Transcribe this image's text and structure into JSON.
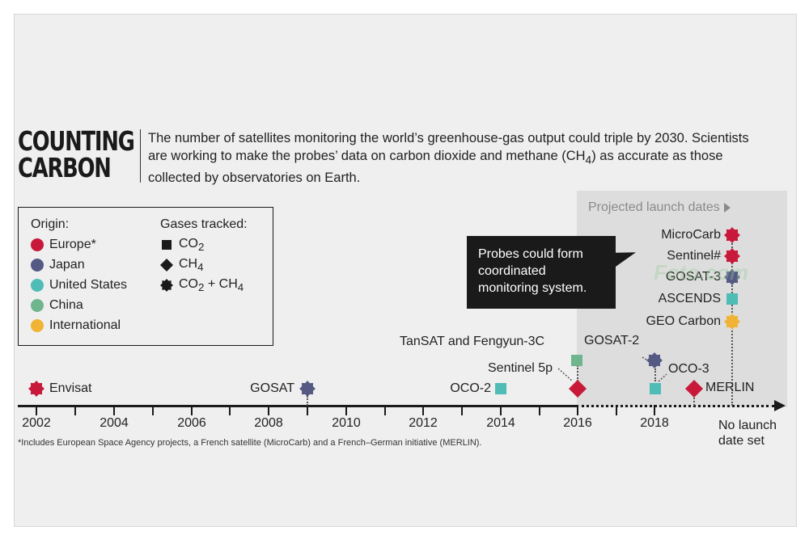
{
  "title": {
    "line1": "COUNTING",
    "line2": "CARBON"
  },
  "intro": "The number of satellites monitoring the world’s greenhouse-gas output could triple by 2030. Scientists are working to make the probes’ data on carbon dioxide and methane (CH4) as accurate as those collected by observatories on Earth.",
  "legend": {
    "origin_heading": "Origin:",
    "origins": [
      {
        "label": "Europe*",
        "color": "#c8193a"
      },
      {
        "label": "Japan",
        "color": "#555a85"
      },
      {
        "label": "United States",
        "color": "#4fbcb6"
      },
      {
        "label": "China",
        "color": "#6fb58d"
      },
      {
        "label": "International",
        "color": "#f1b335"
      }
    ],
    "gases_heading": "Gases tracked:",
    "gases": [
      {
        "label": "CO2",
        "symbol": "square"
      },
      {
        "label": "CH4",
        "symbol": "diamond"
      },
      {
        "label": "CO2 + CH4",
        "symbol": "star"
      }
    ]
  },
  "axis": {
    "years": [
      "2002",
      "2004",
      "2006",
      "2008",
      "2010",
      "2012",
      "2014",
      "2016",
      "2018"
    ],
    "no_launch_label": "No launch date set"
  },
  "projected_label": "Projected launch dates",
  "callout": "Probes could form coordinated monitoring system.",
  "satellites": [
    {
      "name": "Envisat",
      "year": "2002",
      "origin": "Europe",
      "gas": "CO2 + CH4"
    },
    {
      "name": "GOSAT",
      "year": "2009",
      "origin": "Japan",
      "gas": "CO2 + CH4"
    },
    {
      "name": "OCO-2",
      "year": "2014",
      "origin": "United States",
      "gas": "CO2"
    },
    {
      "name": "TanSAT and Fengyun-3C",
      "year": "2016",
      "origin": "China",
      "gas": "CO2"
    },
    {
      "name": "Sentinel 5p",
      "year": "2016",
      "origin": "Europe",
      "gas": "CH4"
    },
    {
      "name": "GOSAT-2",
      "year": "2018",
      "origin": "Japan",
      "gas": "CO2 + CH4"
    },
    {
      "name": "OCO-3",
      "year": "2018",
      "origin": "United States",
      "gas": "CO2"
    },
    {
      "name": "MERLIN",
      "year": "2019",
      "origin": "Europe",
      "gas": "CH4"
    },
    {
      "name": "MicroCarb",
      "year": "No launch date set",
      "origin": "Europe",
      "gas": "CO2 + CH4"
    },
    {
      "name": "Sentinel#",
      "year": "No launch date set",
      "origin": "Europe",
      "gas": "CO2 + CH4"
    },
    {
      "name": "GOSAT-3",
      "year": "No launch date set",
      "origin": "Japan",
      "gas": "CO2 + CH4"
    },
    {
      "name": "ASCENDS",
      "year": "No launch date set",
      "origin": "United States",
      "gas": "CO2"
    },
    {
      "name": "GEO Carbon",
      "year": "No launch date set",
      "origin": "International",
      "gas": "CO2 + CH4"
    }
  ],
  "footnote": "*Includes European Space Agency projects, a French satellite (MicroCarb) and a French–German initiative (MERLIN).",
  "watermark": "Foto.com",
  "colors": {
    "europe": "#c8193a",
    "japan": "#555a85",
    "united_states": "#4fbcb6",
    "china": "#6fb58d",
    "international": "#f1b335"
  }
}
